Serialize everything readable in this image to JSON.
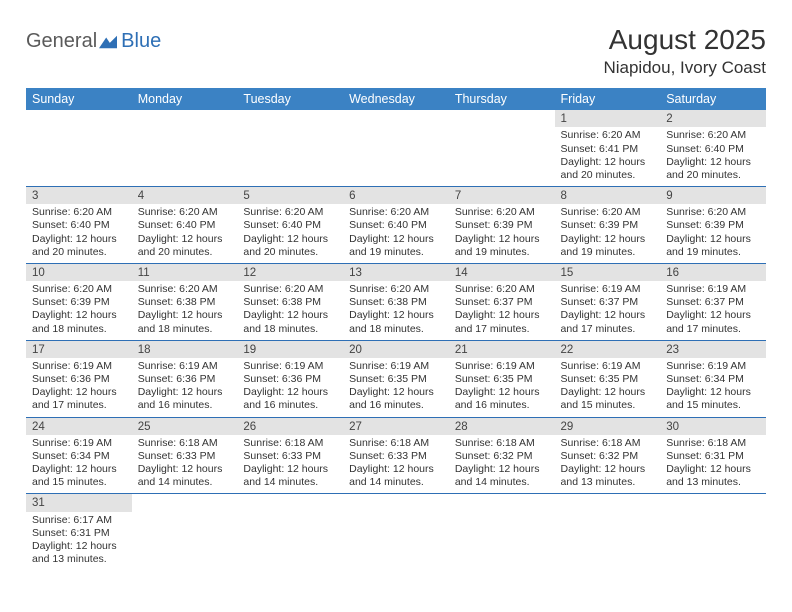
{
  "logo": {
    "text1": "General",
    "text2": "Blue"
  },
  "title": "August 2025",
  "location": "Niapidou, Ivory Coast",
  "colors": {
    "header_bg": "#3b82c4",
    "header_fg": "#ffffff",
    "daynum_bg": "#e3e3e3",
    "row_border": "#2e6fb5",
    "logo_blue": "#2e6fb5",
    "logo_gray": "#5a5a5a"
  },
  "day_names": [
    "Sunday",
    "Monday",
    "Tuesday",
    "Wednesday",
    "Thursday",
    "Friday",
    "Saturday"
  ],
  "weeks": [
    [
      null,
      null,
      null,
      null,
      null,
      {
        "n": "1",
        "sr": "6:20 AM",
        "ss": "6:41 PM",
        "dl": "12 hours and 20 minutes."
      },
      {
        "n": "2",
        "sr": "6:20 AM",
        "ss": "6:40 PM",
        "dl": "12 hours and 20 minutes."
      }
    ],
    [
      {
        "n": "3",
        "sr": "6:20 AM",
        "ss": "6:40 PM",
        "dl": "12 hours and 20 minutes."
      },
      {
        "n": "4",
        "sr": "6:20 AM",
        "ss": "6:40 PM",
        "dl": "12 hours and 20 minutes."
      },
      {
        "n": "5",
        "sr": "6:20 AM",
        "ss": "6:40 PM",
        "dl": "12 hours and 20 minutes."
      },
      {
        "n": "6",
        "sr": "6:20 AM",
        "ss": "6:40 PM",
        "dl": "12 hours and 19 minutes."
      },
      {
        "n": "7",
        "sr": "6:20 AM",
        "ss": "6:39 PM",
        "dl": "12 hours and 19 minutes."
      },
      {
        "n": "8",
        "sr": "6:20 AM",
        "ss": "6:39 PM",
        "dl": "12 hours and 19 minutes."
      },
      {
        "n": "9",
        "sr": "6:20 AM",
        "ss": "6:39 PM",
        "dl": "12 hours and 19 minutes."
      }
    ],
    [
      {
        "n": "10",
        "sr": "6:20 AM",
        "ss": "6:39 PM",
        "dl": "12 hours and 18 minutes."
      },
      {
        "n": "11",
        "sr": "6:20 AM",
        "ss": "6:38 PM",
        "dl": "12 hours and 18 minutes."
      },
      {
        "n": "12",
        "sr": "6:20 AM",
        "ss": "6:38 PM",
        "dl": "12 hours and 18 minutes."
      },
      {
        "n": "13",
        "sr": "6:20 AM",
        "ss": "6:38 PM",
        "dl": "12 hours and 18 minutes."
      },
      {
        "n": "14",
        "sr": "6:20 AM",
        "ss": "6:37 PM",
        "dl": "12 hours and 17 minutes."
      },
      {
        "n": "15",
        "sr": "6:19 AM",
        "ss": "6:37 PM",
        "dl": "12 hours and 17 minutes."
      },
      {
        "n": "16",
        "sr": "6:19 AM",
        "ss": "6:37 PM",
        "dl": "12 hours and 17 minutes."
      }
    ],
    [
      {
        "n": "17",
        "sr": "6:19 AM",
        "ss": "6:36 PM",
        "dl": "12 hours and 17 minutes."
      },
      {
        "n": "18",
        "sr": "6:19 AM",
        "ss": "6:36 PM",
        "dl": "12 hours and 16 minutes."
      },
      {
        "n": "19",
        "sr": "6:19 AM",
        "ss": "6:36 PM",
        "dl": "12 hours and 16 minutes."
      },
      {
        "n": "20",
        "sr": "6:19 AM",
        "ss": "6:35 PM",
        "dl": "12 hours and 16 minutes."
      },
      {
        "n": "21",
        "sr": "6:19 AM",
        "ss": "6:35 PM",
        "dl": "12 hours and 16 minutes."
      },
      {
        "n": "22",
        "sr": "6:19 AM",
        "ss": "6:35 PM",
        "dl": "12 hours and 15 minutes."
      },
      {
        "n": "23",
        "sr": "6:19 AM",
        "ss": "6:34 PM",
        "dl": "12 hours and 15 minutes."
      }
    ],
    [
      {
        "n": "24",
        "sr": "6:19 AM",
        "ss": "6:34 PM",
        "dl": "12 hours and 15 minutes."
      },
      {
        "n": "25",
        "sr": "6:18 AM",
        "ss": "6:33 PM",
        "dl": "12 hours and 14 minutes."
      },
      {
        "n": "26",
        "sr": "6:18 AM",
        "ss": "6:33 PM",
        "dl": "12 hours and 14 minutes."
      },
      {
        "n": "27",
        "sr": "6:18 AM",
        "ss": "6:33 PM",
        "dl": "12 hours and 14 minutes."
      },
      {
        "n": "28",
        "sr": "6:18 AM",
        "ss": "6:32 PM",
        "dl": "12 hours and 14 minutes."
      },
      {
        "n": "29",
        "sr": "6:18 AM",
        "ss": "6:32 PM",
        "dl": "12 hours and 13 minutes."
      },
      {
        "n": "30",
        "sr": "6:18 AM",
        "ss": "6:31 PM",
        "dl": "12 hours and 13 minutes."
      }
    ],
    [
      {
        "n": "31",
        "sr": "6:17 AM",
        "ss": "6:31 PM",
        "dl": "12 hours and 13 minutes."
      },
      null,
      null,
      null,
      null,
      null,
      null
    ]
  ],
  "labels": {
    "sunrise": "Sunrise:",
    "sunset": "Sunset:",
    "daylight": "Daylight:"
  }
}
